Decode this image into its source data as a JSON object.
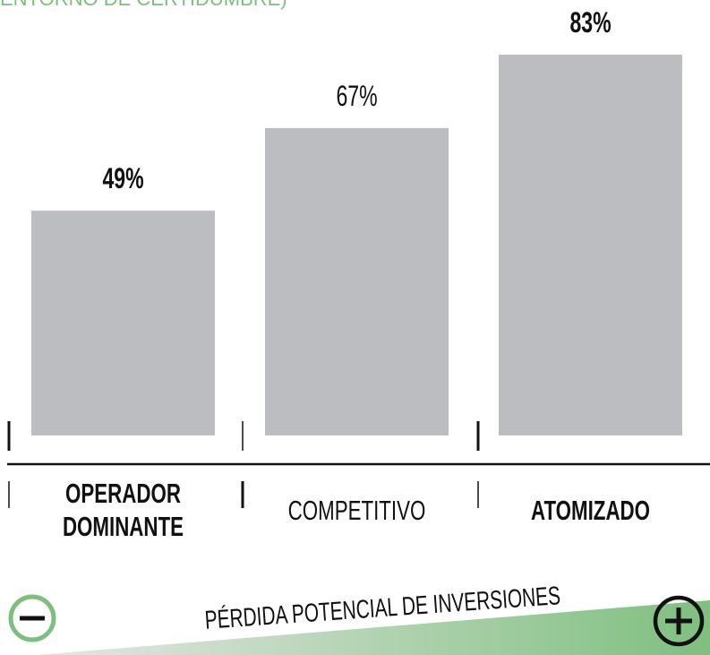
{
  "chart_data": {
    "type": "bar",
    "subtitle": "ENTORNO DE CERTIDUMBRE)",
    "categories": [
      "OPERADOR DOMINANTE",
      "COMPETITIVO",
      "ATOMIZADO"
    ],
    "values": [
      49,
      67,
      83
    ],
    "value_labels": [
      "49%",
      "67%",
      "83%"
    ],
    "color": "#bcbdc0",
    "annotation": "PÉRDIDA POTENCIAL DE INVERSIONES"
  }
}
